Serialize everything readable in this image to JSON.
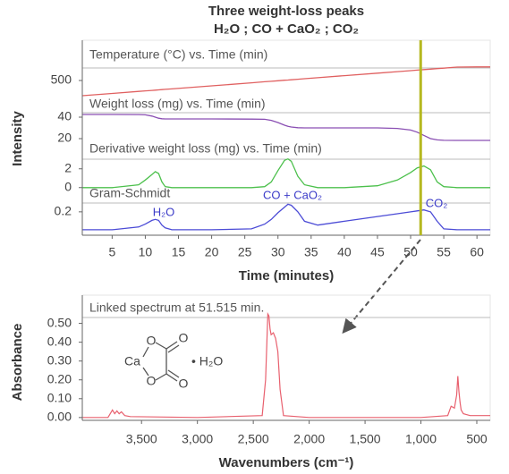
{
  "chart_data": [
    {
      "type": "stacked-line",
      "title": "Three weight-loss peaks",
      "subtitle": "H₂O ; CO + CaO₂ ; CO₂",
      "xlabel": "Time (minutes)",
      "ylabel": "Intensity",
      "xlim": [
        0.5,
        62
      ],
      "xticks": [
        5,
        10,
        15,
        20,
        25,
        30,
        35,
        40,
        45,
        50,
        55,
        60
      ],
      "x": [
        0.5,
        5,
        9,
        10,
        11,
        11.5,
        12,
        12.5,
        13,
        14,
        20,
        26,
        28,
        29,
        30,
        31,
        31.5,
        32,
        33,
        34,
        36,
        40,
        45,
        48,
        50,
        51,
        52,
        53,
        54,
        55,
        57,
        60,
        62
      ],
      "marker_x": 51.515,
      "marker_color": "#b5b820",
      "panels": [
        {
          "title": "Temperature (°C) vs. Time (min)",
          "color": "#e06060",
          "ylim": [
            200,
            850
          ],
          "yticks": [
            500
          ],
          "values": [
            330,
            355,
            378,
            384,
            389,
            392,
            395,
            398,
            401,
            406,
            440,
            474,
            486,
            491,
            497,
            503,
            505,
            508,
            514,
            520,
            531,
            554,
            582,
            599,
            610,
            616,
            622,
            627,
            633,
            638,
            650,
            652,
            652
          ]
        },
        {
          "title": "Weight loss (mg) vs. Time (min)",
          "color": "#8a4fb3",
          "ylim": [
            10,
            50
          ],
          "yticks": [
            40,
            20
          ],
          "values": [
            42.5,
            42.5,
            42.4,
            42.2,
            41,
            40,
            39,
            38.5,
            38.3,
            38.3,
            38.3,
            38.2,
            38,
            37,
            35,
            32.5,
            31.5,
            30.8,
            30.2,
            30,
            30,
            30,
            30,
            29.5,
            28,
            26,
            23,
            20,
            18.8,
            18.4,
            18.3,
            18.3,
            18.3
          ]
        },
        {
          "title": "Derivative weight loss (mg) vs. Time (min)",
          "color": "#4cc04c",
          "ylim": [
            -0.5,
            3.5
          ],
          "yticks": [
            2,
            0
          ],
          "values": [
            0,
            0,
            0.3,
            0.8,
            1.4,
            1.7,
            1.5,
            0.6,
            0.1,
            0,
            0,
            0,
            0.1,
            0.6,
            1.8,
            2.9,
            3.05,
            2.8,
            1.2,
            0.3,
            0,
            0,
            0.2,
            0.8,
            1.6,
            2.1,
            2.3,
            1.9,
            0.6,
            0.1,
            0,
            0,
            0
          ]
        },
        {
          "title": "Gram-Schmidt",
          "color": "#4b4bd6",
          "ylim": [
            0,
            0.35
          ],
          "yticks": [
            0.2
          ],
          "values": [
            0.01,
            0.01,
            0.04,
            0.07,
            0.11,
            0.12,
            0.11,
            0.06,
            0.03,
            0.01,
            0.01,
            0.02,
            0.07,
            0.12,
            0.19,
            0.25,
            0.28,
            0.27,
            0.2,
            0.1,
            0.06,
            0.1,
            0.15,
            0.18,
            0.2,
            0.21,
            0.22,
            0.2,
            0.1,
            0.02,
            0.01,
            0.01,
            0.01
          ]
        }
      ],
      "annotations": [
        "H₂O",
        "CO + CaO₂",
        "CO₂"
      ],
      "annotation_color": "#3b3bc8"
    },
    {
      "type": "line",
      "title": "Linked spectrum at 51.515 min.",
      "xlabel": "Wavenumbers (cm⁻¹)",
      "ylabel": "Absorbance",
      "xlim": [
        4030,
        380
      ],
      "xticks": [
        {
          "value": 3500,
          "label": "3,500"
        },
        {
          "value": 3000,
          "label": "3,000"
        },
        {
          "value": 2500,
          "label": "2,500"
        },
        {
          "value": 2000,
          "label": "2,000"
        },
        {
          "value": 1500,
          "label": "1,500"
        },
        {
          "value": 1000,
          "label": "1,000"
        },
        500
      ],
      "ylim": [
        -0.015,
        0.65
      ],
      "yticks": [
        {
          "value": 0,
          "label": "0.00"
        },
        {
          "value": 0.1,
          "label": "0.10"
        },
        {
          "value": 0.2,
          "label": "0.20"
        },
        {
          "value": 0.3,
          "label": "0.30"
        },
        {
          "value": 0.4,
          "label": "0.40"
        },
        {
          "value": 0.5,
          "label": "0.50"
        }
      ],
      "color": "#e8606e",
      "x": [
        4030,
        3800,
        3760,
        3740,
        3720,
        3700,
        3680,
        3650,
        3600,
        3000,
        2420,
        2390,
        2370,
        2360,
        2350,
        2340,
        2320,
        2300,
        2280,
        2260,
        2230,
        2000,
        1000,
        760,
        730,
        700,
        680,
        670,
        660,
        650,
        640,
        620,
        560,
        380
      ],
      "values": [
        0,
        0,
        0.04,
        0.02,
        0.035,
        0.02,
        0.03,
        0.01,
        0.005,
        0,
        0.01,
        0.2,
        0.55,
        0.54,
        0.47,
        0.44,
        0.45,
        0.42,
        0.35,
        0.15,
        0.01,
        0,
        0,
        0.01,
        0.06,
        0.05,
        0.12,
        0.22,
        0.14,
        0.08,
        0.04,
        0.02,
        0.01,
        0.01
      ],
      "structure": {
        "atoms": [
          "O",
          "O",
          "Ca",
          "O",
          "O"
        ],
        "hydrate": "• H₂O"
      }
    }
  ]
}
